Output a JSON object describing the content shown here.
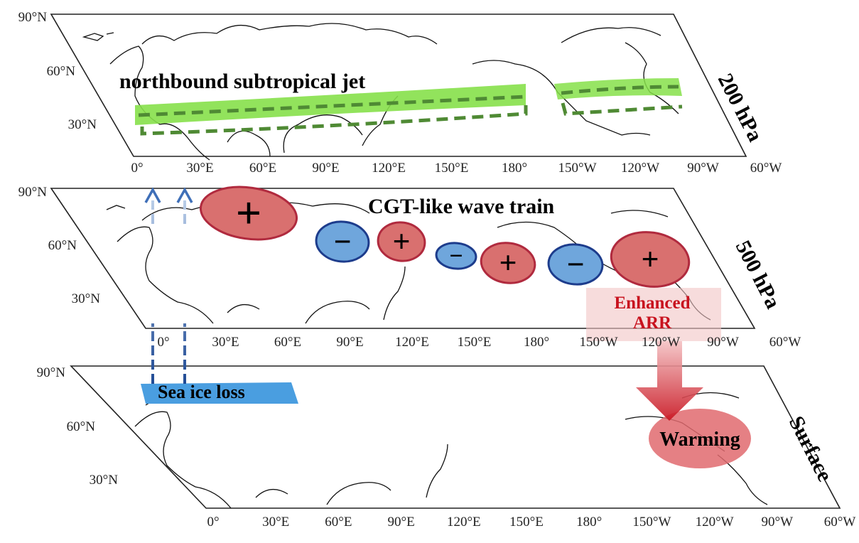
{
  "panels": [
    {
      "level_label": "200 hPa",
      "lat_labels": [
        "90°N",
        "60°N",
        "30°N"
      ],
      "lon_labels": [
        "0°",
        "30°E",
        "60°E",
        "90°E",
        "120°E",
        "150°E",
        "180°",
        "150°W",
        "120°W",
        "90°W",
        "60°W"
      ],
      "annotation": "northbound subtropical jet"
    },
    {
      "level_label": "500 hPa",
      "lat_labels": [
        "90°N",
        "60°N",
        "30°N"
      ],
      "lon_labels": [
        "0°",
        "30°E",
        "60°E",
        "90°E",
        "120°E",
        "150°E",
        "180°",
        "150°W",
        "120°W",
        "90°W",
        "60°W"
      ],
      "annotation": "CGT-like wave train",
      "anomalies": [
        "+",
        "−",
        "+",
        "−",
        "+",
        "−",
        "+"
      ],
      "arr_label_line1": "Enhanced",
      "arr_label_line2": "ARR"
    },
    {
      "level_label": "Surface",
      "lat_labels": [
        "90°N",
        "60°N",
        "30°N"
      ],
      "lon_labels": [
        "0°",
        "30°E",
        "60°E",
        "90°E",
        "120°E",
        "150°E",
        "180°",
        "150°W",
        "120°W",
        "90°W",
        "60°W"
      ],
      "sea_ice_label": "Sea ice loss",
      "warming_label": "Warming"
    }
  ],
  "colors": {
    "jet_green": "#86e04a",
    "jet_dash": "#4f8a34",
    "positive_fill": "#d9706f",
    "positive_stroke": "#b02a3e",
    "negative_fill": "#6fa6dc",
    "negative_stroke": "#1d3c8c",
    "sea_ice": "#4a9ee0",
    "arr_red": "#c8121e"
  }
}
